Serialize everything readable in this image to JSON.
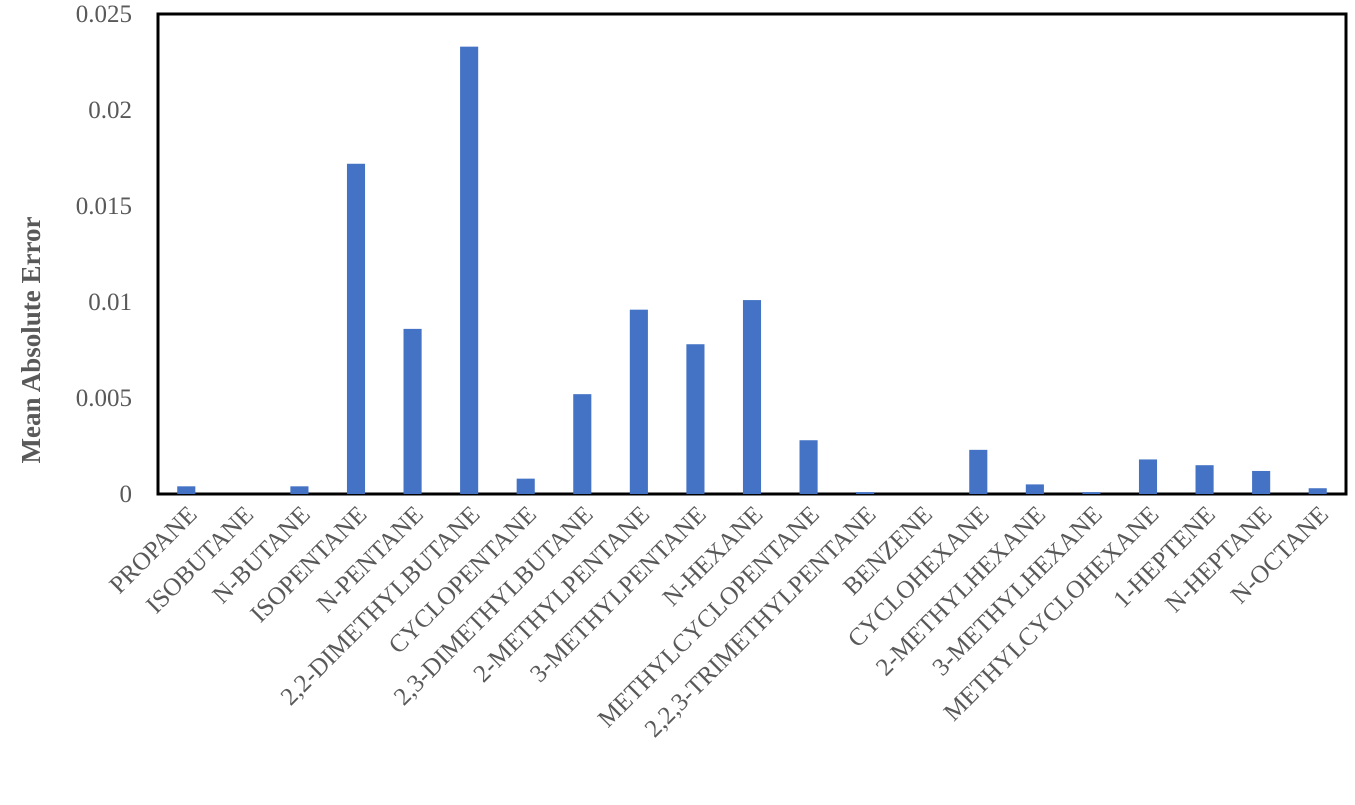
{
  "chart_data": {
    "type": "bar",
    "title": "",
    "xlabel": "",
    "ylabel": "Mean Absolute Error",
    "ylim": [
      0,
      0.025
    ],
    "yticks": [
      0,
      0.005,
      0.01,
      0.015,
      0.02,
      0.025
    ],
    "ytick_labels": [
      "0",
      "0.005",
      "0.01",
      "0.015",
      "0.02",
      "0.025"
    ],
    "grid": false,
    "legend": "none",
    "bar_color": "#4472C4",
    "categories": [
      "PROPANE",
      "ISOBUTANE",
      "N-BUTANE",
      "ISOPENTANE",
      "N-PENTANE",
      "2,2-DIMETHYLBUTANE",
      "CYCLOPENTANE",
      "2,3-DIMETHYLBUTANE",
      "2-METHYLPENTANE",
      "3-METHYLPENTANE",
      "N-HEXANE",
      "METHYLCYCLOPENTANE",
      "2,2,3-TRIMETHYLPENTANE",
      "BENZENE",
      "CYCLOHEXANE",
      "2-METHYLHEXANE",
      "3-METHYLHEXANE",
      "METHYLCYCLOHEXANE",
      "1-HEPTENE",
      "N-HEPTANE",
      "N-OCTANE"
    ],
    "values": [
      0.0004,
      0.0,
      0.0004,
      0.0172,
      0.0086,
      0.0233,
      0.0008,
      0.0052,
      0.0096,
      0.0078,
      0.0101,
      0.0028,
      0.0001,
      0.0,
      0.0023,
      0.0005,
      0.0001,
      0.0018,
      0.0015,
      0.0012,
      0.0003
    ]
  }
}
